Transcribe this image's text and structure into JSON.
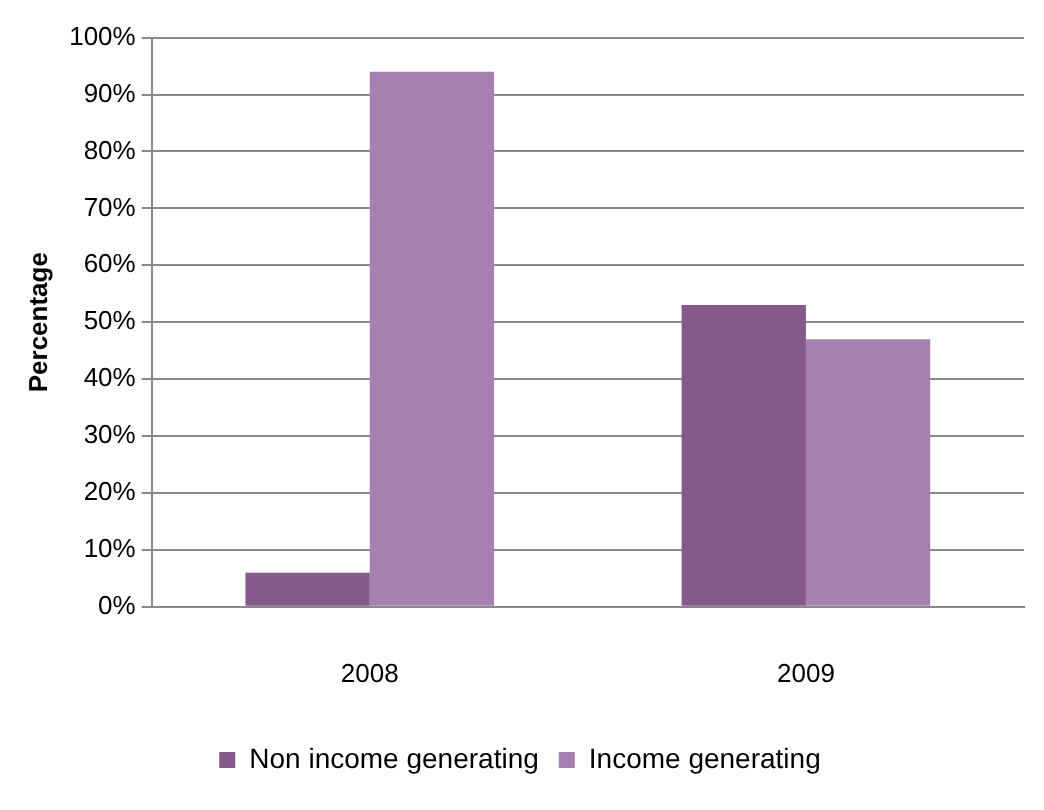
{
  "chart_data": {
    "type": "bar",
    "ylabel": "Percentage",
    "categories": [
      "2008",
      "2009"
    ],
    "series": [
      {
        "name": "Non income generating",
        "color": "#86598c",
        "values": [
          6,
          53
        ]
      },
      {
        "name": "Income generating",
        "color": "#a580b0",
        "values": [
          94,
          47
        ]
      }
    ],
    "ylim": [
      0,
      100
    ],
    "yticks": [
      {
        "value": 0,
        "label": "0%"
      },
      {
        "value": 10,
        "label": "10%"
      },
      {
        "value": 20,
        "label": "20%"
      },
      {
        "value": 30,
        "label": "30%"
      },
      {
        "value": 40,
        "label": "40%"
      },
      {
        "value": 50,
        "label": "50%"
      },
      {
        "value": 60,
        "label": "60%"
      },
      {
        "value": 70,
        "label": "70%"
      },
      {
        "value": 80,
        "label": "80%"
      },
      {
        "value": 90,
        "label": "90%"
      },
      {
        "value": 100,
        "label": "100%"
      }
    ],
    "grid": "y",
    "legend": "bottom"
  }
}
